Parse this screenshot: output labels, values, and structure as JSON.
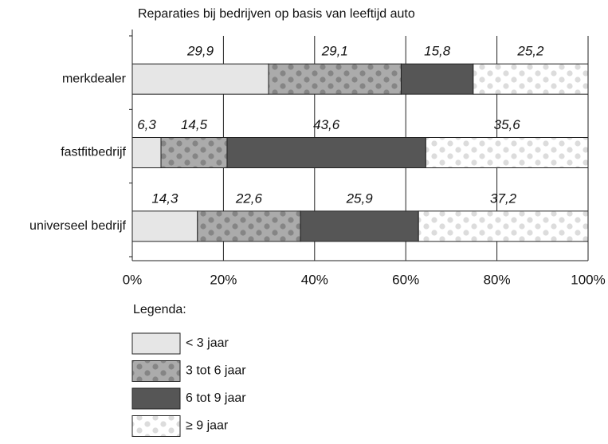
{
  "chart_data": {
    "type": "bar",
    "orientation": "horizontal",
    "stacked": true,
    "title": "Reparaties bij bedrijven op basis van leeftijd auto",
    "categories": [
      "merkdealer",
      "fastfitbedrijf",
      "universeel bedrijf"
    ],
    "series": [
      {
        "name": "< 3 jaar",
        "color": "#e6e6e6",
        "values": [
          29.9,
          6.3,
          14.3
        ],
        "value_labels": [
          "29,9",
          "6,3",
          "14,3"
        ]
      },
      {
        "name": "3 tot 6 jaar",
        "color": "#ababab",
        "dot_color": "#858585",
        "values": [
          29.1,
          14.5,
          22.6
        ],
        "value_labels": [
          "29,1",
          "14,5",
          "22,6"
        ]
      },
      {
        "name": "6 tot 9 jaar",
        "color": "#565656",
        "values": [
          15.8,
          43.6,
          25.9
        ],
        "value_labels": [
          "15,8",
          "43,6",
          "25,9"
        ]
      },
      {
        "name": "≥ 9 jaar",
        "color": "#ffffff",
        "dot_color": "#dcdcdc",
        "values": [
          25.2,
          35.6,
          37.2
        ],
        "value_labels": [
          "25,2",
          "35,6",
          "37,2"
        ]
      }
    ],
    "xlim": [
      0,
      100
    ],
    "xticks": [
      {
        "value": 0,
        "label": "0%"
      },
      {
        "value": 20,
        "label": "20%"
      },
      {
        "value": 40,
        "label": "40%"
      },
      {
        "value": 60,
        "label": "60%"
      },
      {
        "value": 80,
        "label": "80%"
      },
      {
        "value": 100,
        "label": "100%"
      }
    ],
    "grid": true,
    "legend_title": "Legenda:"
  }
}
